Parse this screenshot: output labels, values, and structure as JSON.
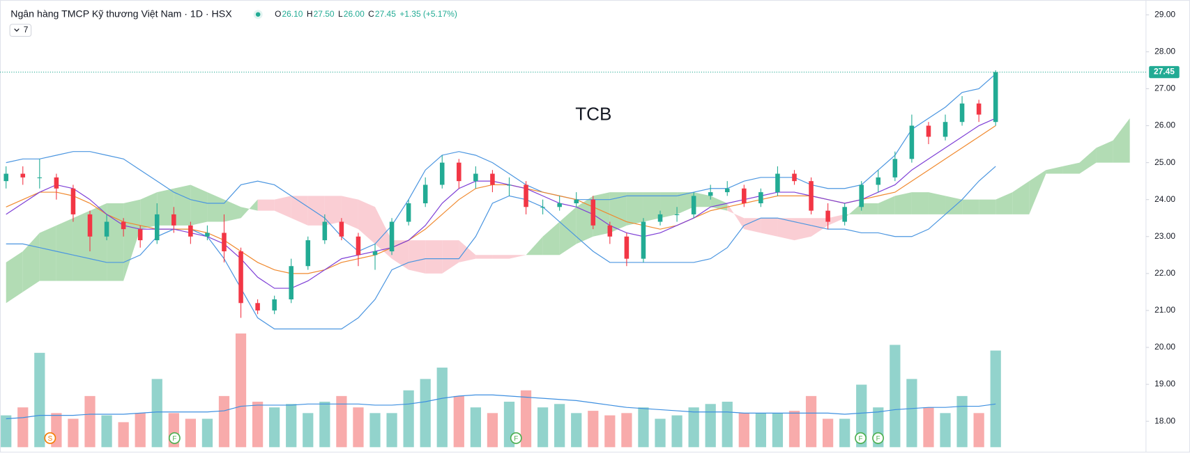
{
  "header": {
    "title": "Ngân hàng TMCP Kỹ thương Việt Nam · 1D · HSX",
    "ohlc": [
      {
        "key": "O",
        "value": "26.10"
      },
      {
        "key": "H",
        "value": "27.50"
      },
      {
        "key": "L",
        "value": "26.00"
      },
      {
        "key": "C",
        "value": "27.45"
      }
    ],
    "change": "+1.35 (+5.17%)",
    "indicator_count": "7"
  },
  "events": [
    "S",
    "F",
    "F",
    "F",
    "F"
  ],
  "chart_data": {
    "type": "candlestick",
    "watermark": "TCB",
    "open": [
      24.5,
      24.7,
      24.6,
      24.6,
      24.3,
      23.6,
      23.0,
      23.4,
      23.2,
      22.9,
      23.6,
      23.3,
      23.0,
      23.1,
      22.6,
      21.2,
      21.0,
      21.3,
      22.2,
      22.9,
      23.4,
      23.0,
      22.5,
      22.6,
      23.4,
      23.9,
      24.4,
      25.0,
      24.5,
      24.7,
      24.4,
      24.4,
      23.8,
      23.8,
      23.9,
      24.0,
      23.3,
      23.0,
      22.4,
      23.4,
      23.6,
      23.6,
      24.1,
      24.2,
      24.3,
      23.9,
      24.2,
      24.7,
      24.5,
      23.7,
      23.4,
      23.8,
      24.4,
      24.6,
      25.1,
      26.0,
      25.7,
      26.1,
      26.6,
      26.1
    ],
    "high": [
      24.9,
      24.9,
      25.1,
      24.7,
      24.4,
      23.7,
      23.6,
      23.5,
      23.3,
      23.9,
      23.8,
      23.4,
      23.3,
      23.6,
      22.7,
      21.3,
      21.4,
      22.4,
      23.0,
      23.6,
      23.5,
      23.1,
      22.8,
      23.5,
      24.0,
      24.6,
      25.2,
      25.1,
      24.9,
      24.8,
      24.6,
      24.5,
      24.0,
      24.1,
      24.2,
      24.1,
      23.4,
      23.1,
      23.5,
      23.7,
      23.8,
      24.2,
      24.4,
      24.5,
      24.4,
      24.3,
      24.9,
      24.8,
      24.6,
      23.9,
      23.9,
      24.5,
      24.8,
      25.3,
      26.3,
      26.1,
      26.3,
      26.8,
      26.7,
      27.5
    ],
    "low": [
      24.3,
      24.4,
      24.3,
      24.0,
      23.4,
      22.6,
      22.9,
      23.0,
      22.7,
      22.8,
      23.1,
      22.8,
      22.9,
      22.3,
      20.8,
      20.9,
      20.9,
      21.2,
      22.1,
      22.8,
      22.9,
      22.2,
      22.1,
      22.5,
      23.3,
      23.8,
      24.3,
      24.3,
      24.3,
      24.2,
      24.1,
      23.6,
      23.6,
      23.7,
      23.8,
      23.2,
      22.8,
      22.2,
      22.3,
      23.3,
      23.4,
      23.5,
      24.0,
      24.1,
      23.8,
      23.8,
      24.1,
      24.4,
      23.6,
      23.2,
      23.3,
      23.7,
      24.2,
      24.5,
      25.0,
      25.5,
      25.6,
      26.0,
      26.1,
      26.0
    ],
    "close": [
      24.7,
      24.6,
      24.6,
      24.3,
      23.6,
      23.0,
      23.4,
      23.2,
      22.9,
      23.6,
      23.3,
      23.0,
      23.1,
      22.6,
      21.2,
      21.0,
      21.3,
      22.2,
      22.9,
      23.4,
      23.0,
      22.5,
      22.6,
      23.4,
      23.9,
      24.4,
      25.0,
      24.5,
      24.7,
      24.4,
      24.4,
      23.8,
      23.8,
      23.9,
      24.0,
      23.3,
      23.0,
      22.4,
      23.4,
      23.6,
      23.6,
      24.1,
      24.2,
      24.3,
      23.9,
      24.2,
      24.7,
      24.5,
      23.7,
      23.4,
      23.8,
      24.4,
      24.6,
      25.1,
      26.0,
      25.7,
      26.1,
      26.6,
      26.3,
      27.45
    ],
    "volume": [
      28,
      35,
      83,
      30,
      25,
      45,
      28,
      22,
      30,
      60,
      30,
      25,
      25,
      45,
      100,
      40,
      35,
      38,
      30,
      40,
      45,
      35,
      30,
      30,
      50,
      60,
      70,
      45,
      35,
      30,
      40,
      50,
      35,
      38,
      30,
      32,
      28,
      30,
      35,
      25,
      28,
      35,
      38,
      40,
      30,
      30,
      30,
      32,
      45,
      25,
      25,
      55,
      35,
      90,
      60,
      35,
      30,
      45,
      30,
      85
    ],
    "volume_ma": [
      25,
      26,
      28,
      28,
      28,
      29,
      29,
      29,
      30,
      31,
      31,
      31,
      31,
      32,
      36,
      37,
      37,
      37,
      38,
      38,
      38,
      38,
      37,
      37,
      38,
      40,
      43,
      45,
      46,
      46,
      45,
      44,
      43,
      42,
      41,
      39,
      37,
      35,
      34,
      33,
      32,
      31,
      31,
      31,
      30,
      30,
      30,
      30,
      30,
      30,
      29,
      30,
      31,
      33,
      34,
      35,
      35,
      36,
      36,
      38
    ],
    "bb_upper": [
      25.0,
      25.1,
      25.1,
      25.2,
      25.3,
      25.3,
      25.2,
      25.1,
      24.8,
      24.5,
      24.2,
      24.0,
      23.9,
      23.9,
      24.4,
      24.5,
      24.4,
      24.1,
      23.8,
      23.5,
      23.0,
      22.6,
      22.8,
      23.3,
      24.0,
      24.8,
      25.2,
      25.3,
      25.2,
      25.0,
      24.7,
      24.4,
      24.2,
      24.1,
      24.0,
      24.0,
      24.0,
      24.1,
      24.1,
      24.1,
      24.1,
      24.2,
      24.3,
      24.3,
      24.5,
      24.6,
      24.6,
      24.6,
      24.4,
      24.3,
      24.3,
      24.4,
      24.8,
      25.2,
      25.9,
      26.2,
      26.5,
      26.9,
      27.0,
      27.4
    ],
    "bb_lower": [
      22.8,
      22.8,
      22.7,
      22.6,
      22.5,
      22.4,
      22.3,
      22.3,
      22.5,
      23.0,
      23.2,
      23.2,
      23.0,
      22.4,
      21.6,
      20.8,
      20.5,
      20.5,
      20.5,
      20.5,
      20.5,
      20.8,
      21.3,
      22.1,
      22.3,
      22.4,
      22.4,
      22.4,
      23.0,
      23.9,
      24.1,
      24.0,
      23.8,
      23.4,
      23.0,
      22.6,
      22.3,
      22.3,
      22.3,
      22.3,
      22.3,
      22.3,
      22.4,
      22.7,
      23.3,
      23.5,
      23.5,
      23.4,
      23.3,
      23.2,
      23.2,
      23.1,
      23.1,
      23.0,
      23.0,
      23.2,
      23.6,
      24.0,
      24.5,
      24.9
    ],
    "ma_fast": [
      23.6,
      23.9,
      24.2,
      24.4,
      24.3,
      24.0,
      23.6,
      23.3,
      23.2,
      23.2,
      23.2,
      23.1,
      23.0,
      22.8,
      22.4,
      21.9,
      21.6,
      21.6,
      21.8,
      22.1,
      22.4,
      22.5,
      22.6,
      22.7,
      22.9,
      23.3,
      23.9,
      24.3,
      24.5,
      24.5,
      24.4,
      24.3,
      24.1,
      23.9,
      23.8,
      23.6,
      23.3,
      23.1,
      23.0,
      23.1,
      23.3,
      23.5,
      23.8,
      23.9,
      24.0,
      24.1,
      24.2,
      24.2,
      24.1,
      24.0,
      23.9,
      24.0,
      24.2,
      24.4,
      24.8,
      25.1,
      25.4,
      25.7,
      26.0,
      26.2
    ],
    "ma_slow": [
      23.8,
      24.0,
      24.2,
      24.2,
      24.1,
      23.9,
      23.6,
      23.4,
      23.3,
      23.2,
      23.2,
      23.2,
      23.1,
      22.9,
      22.6,
      22.3,
      22.1,
      22.0,
      22.0,
      22.1,
      22.3,
      22.4,
      22.5,
      22.7,
      22.9,
      23.2,
      23.6,
      24.0,
      24.3,
      24.4,
      24.4,
      24.3,
      24.2,
      24.1,
      24.0,
      23.8,
      23.6,
      23.4,
      23.3,
      23.2,
      23.3,
      23.5,
      23.7,
      23.8,
      23.9,
      24.0,
      24.1,
      24.1,
      24.1,
      24.0,
      23.9,
      24.0,
      24.1,
      24.2,
      24.5,
      24.8,
      25.1,
      25.4,
      25.7,
      26.0
    ],
    "cloud_a": [
      22.3,
      22.6,
      23.1,
      23.3,
      23.5,
      23.7,
      23.9,
      23.9,
      24.0,
      24.2,
      24.3,
      24.4,
      24.2,
      24.0,
      23.8,
      23.7,
      23.7,
      23.5,
      23.3,
      23.3,
      23.4,
      23.2,
      22.8,
      22.4,
      22.1,
      22.0,
      22.0,
      22.3,
      22.4,
      22.4,
      22.4,
      22.5,
      23.0,
      23.4,
      23.8,
      24.1,
      24.2,
      24.2,
      24.2,
      24.2,
      24.2,
      24.2,
      24.1,
      23.9,
      23.2,
      23.1,
      23.0,
      22.9,
      23.0,
      23.3,
      23.5,
      23.9,
      23.9,
      24.1,
      24.2,
      24.2,
      24.1,
      24.0,
      24.0,
      24.0,
      24.2,
      24.5,
      24.8,
      24.9,
      25.0,
      25.4,
      25.6,
      26.2
    ],
    "cloud_b": [
      21.2,
      21.5,
      21.8,
      21.8,
      21.8,
      21.8,
      21.8,
      21.8,
      23.2,
      23.3,
      23.3,
      23.3,
      23.4,
      23.4,
      23.5,
      24.0,
      24.0,
      24.1,
      24.1,
      24.1,
      24.1,
      24.0,
      23.8,
      22.9,
      22.9,
      22.9,
      22.9,
      22.9,
      22.5,
      22.5,
      22.5,
      22.5,
      22.5,
      22.5,
      22.8,
      23.0,
      23.1,
      23.3,
      23.4,
      23.5,
      23.6,
      23.8,
      23.8,
      23.7,
      23.5,
      23.5,
      23.5,
      23.5,
      23.5,
      23.5,
      23.6,
      23.6,
      23.6,
      23.6,
      23.6,
      23.6,
      23.6,
      23.6,
      23.6,
      23.6,
      23.6,
      23.6,
      24.7,
      24.7,
      24.7,
      25.0,
      25.0,
      25.0
    ],
    "ylim": [
      17.3,
      29.4
    ],
    "volume_lim": [
      0,
      100
    ],
    "yticks": [
      {
        "value": 18,
        "label": "18.00"
      },
      {
        "value": 19,
        "label": "19.00"
      },
      {
        "value": 20,
        "label": "20.00"
      },
      {
        "value": 21,
        "label": "21.00"
      },
      {
        "value": 22,
        "label": "22.00"
      },
      {
        "value": 23,
        "label": "23.00"
      },
      {
        "value": 24,
        "label": "24.00"
      },
      {
        "value": 25,
        "label": "25.00"
      },
      {
        "value": 26,
        "label": "26.00"
      },
      {
        "value": 27,
        "label": "27.00"
      },
      {
        "value": 28,
        "label": "28.00"
      },
      {
        "value": 29,
        "label": "29.00"
      }
    ],
    "colors": {
      "up": "#22ab94",
      "down": "#f23645",
      "volume_up": "#92d3cc",
      "volume_down": "#f8abab",
      "bb": "#4a95e0",
      "ma_fast": "#7e3fd6",
      "ma_slow": "#f0892e",
      "volume_ma": "#3d8fe0",
      "cloud_up": "#a5d6a7",
      "cloud_down": "#f9c6cc"
    }
  }
}
